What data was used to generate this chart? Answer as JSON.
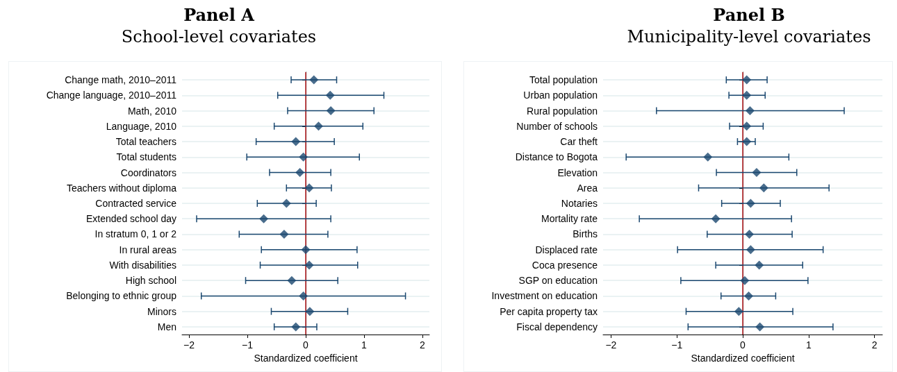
{
  "chart_data": [
    {
      "type": "scatter",
      "title": "Panel A",
      "subtitle": "School-level covariates",
      "xlabel": "Standardized coefficient",
      "orientation": "horizontal",
      "marker": "diamond",
      "color": "#1a476f",
      "grid": "y",
      "categories": [
        "Change math, 2010–2011",
        "Change language, 2010–2011",
        "Math, 2010",
        "Language, 2010",
        "Total teachers",
        "Total students",
        "Coordinators",
        "Teachers without diploma",
        "Contracted service",
        "Extended school day",
        "In stratum 0, 1 or 2",
        "In rural areas",
        "With disabilities",
        "High school",
        "Belonging to ethnic group",
        "Minors",
        "Men"
      ],
      "values": [
        0.14,
        0.42,
        0.43,
        0.22,
        -0.17,
        -0.04,
        -0.1,
        0.06,
        -0.33,
        -0.72,
        -0.37,
        0.0,
        0.06,
        -0.24,
        -0.04,
        0.07,
        -0.17
      ],
      "errors": [
        [
          -0.25,
          0.53
        ],
        [
          -0.48,
          1.34
        ],
        [
          -0.31,
          1.17
        ],
        [
          -0.54,
          0.98
        ],
        [
          -0.85,
          0.49
        ],
        [
          -1.01,
          0.92
        ],
        [
          -0.62,
          0.43
        ],
        [
          -0.33,
          0.44
        ],
        [
          -0.83,
          0.18
        ],
        [
          -1.87,
          0.43
        ],
        [
          -1.14,
          0.38
        ],
        [
          -0.76,
          0.88
        ],
        [
          -0.78,
          0.89
        ],
        [
          -1.03,
          0.55
        ],
        [
          -1.79,
          1.71
        ],
        [
          -0.59,
          0.72
        ],
        [
          -0.54,
          0.19
        ]
      ],
      "xlim": [
        -2.12,
        2.12
      ],
      "xticks": [
        -2,
        -1,
        0,
        1,
        2
      ],
      "ref_lines": [
        {
          "axis": "x",
          "value": 0,
          "color": "#c0282d"
        }
      ]
    },
    {
      "type": "scatter",
      "title": "Panel B",
      "subtitle": "Municipality-level covariates",
      "xlabel": "Standardized coefficient",
      "orientation": "horizontal",
      "marker": "diamond",
      "color": "#1a476f",
      "grid": "y",
      "categories": [
        "Total population",
        "Urban population",
        "Rural population",
        "Number of schools",
        "Car theft",
        "Distance to Bogota",
        "Elevation",
        "Area",
        "Notaries",
        "Mortality rate",
        "Births",
        "Displaced rate",
        "Coca presence",
        "SGP on education",
        "Investment on education",
        "Per capita property tax",
        "Fiscal dependency"
      ],
      "values": [
        0.06,
        0.06,
        0.11,
        0.06,
        0.06,
        -0.53,
        0.21,
        0.32,
        0.12,
        -0.41,
        0.1,
        0.12,
        0.25,
        0.03,
        0.09,
        -0.06,
        0.26
      ],
      "errors": [
        [
          -0.25,
          0.37
        ],
        [
          -0.21,
          0.34
        ],
        [
          -1.31,
          1.54
        ],
        [
          -0.2,
          0.31
        ],
        [
          -0.08,
          0.19
        ],
        [
          -1.77,
          0.7
        ],
        [
          -0.4,
          0.82
        ],
        [
          -0.67,
          1.31
        ],
        [
          -0.32,
          0.57
        ],
        [
          -1.57,
          0.74
        ],
        [
          -0.54,
          0.75
        ],
        [
          -0.99,
          1.22
        ],
        [
          -0.41,
          0.91
        ],
        [
          -0.94,
          0.99
        ],
        [
          -0.33,
          0.5
        ],
        [
          -0.86,
          0.76
        ],
        [
          -0.83,
          1.37
        ]
      ],
      "xlim": [
        -2.12,
        2.12
      ],
      "xticks": [
        -2,
        -1,
        0,
        1,
        2
      ],
      "ref_lines": [
        {
          "axis": "x",
          "value": 0,
          "color": "#c0282d"
        }
      ]
    }
  ]
}
